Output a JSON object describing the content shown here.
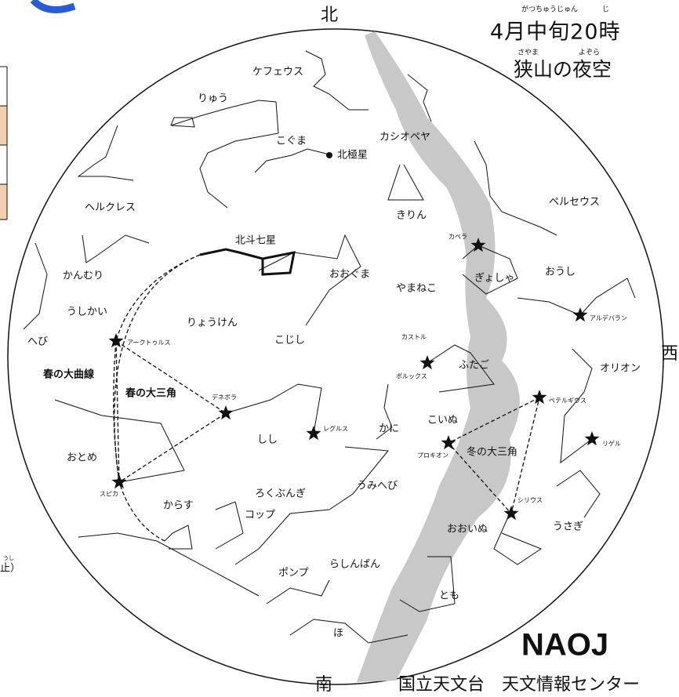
{
  "header": {
    "title": "4月中旬20時",
    "title_ruby_1": "がつちゅうじゅん",
    "title_ruby_2": "じ",
    "subtitle": "狭山の夜空",
    "subtitle_ruby_1": "さやま",
    "subtitle_ruby_2": "よぞら"
  },
  "directions": {
    "north": "北",
    "south": "南",
    "west": "西"
  },
  "side_note": {
    "ruby": "うし",
    "text": "止）"
  },
  "footer": {
    "logo": "NAOJ",
    "credit": "国立天文台　天文情報センター"
  },
  "labels": [
    "ケフェウス",
    "りゅう",
    "こぐま",
    "北極星",
    "カシオペヤ",
    "ヘルクレス",
    "きりん",
    "ペルセウス",
    "北斗七星",
    "かんむり",
    "おおぐま",
    "ぎょしゃ",
    "おうし",
    "うしかい",
    "やまねこ",
    "りょうけん",
    "へび",
    "ふたご",
    "こじし",
    "オリオン",
    "春の大曲線",
    "春の大三角",
    "こいぬ",
    "しし",
    "かに",
    "おとめ",
    "冬の大三角",
    "ろくぶんぎ",
    "うみへび",
    "からす",
    "コップ",
    "おおいぬ",
    "うさぎ",
    "ポンプ",
    "らしんばん",
    "とも",
    "ほ"
  ],
  "stars": [
    "カペラ",
    "アルデバラン",
    "アークトゥルス",
    "カストル",
    "ポルックス",
    "デネボラ",
    "ペテルギウス",
    "レグルス",
    "リゲル",
    "プロキオン",
    "スピカ",
    "シリウス"
  ]
}
